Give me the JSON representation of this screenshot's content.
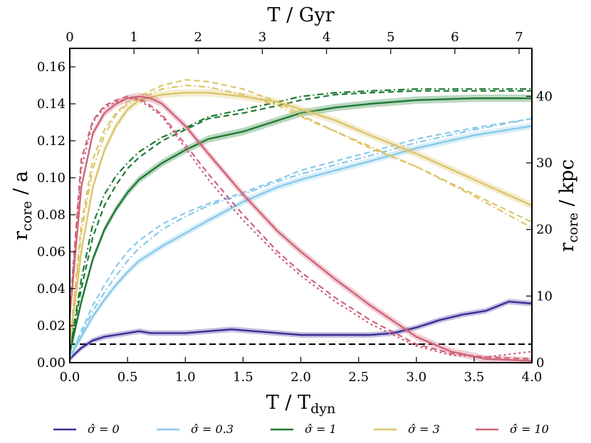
{
  "chart_data": {
    "type": "line",
    "x_bottom_label": "T / T",
    "x_bottom_label_sub": "dyn",
    "x_top_label": "T / Gyr",
    "y_left_label": "r",
    "y_left_label_sub": "core",
    "y_left_label_tail": " / a",
    "y_right_label": "r",
    "y_right_label_sub": "core",
    "y_right_label_tail": " / kpc",
    "xlim": [
      0,
      4
    ],
    "ylim": [
      0,
      0.17
    ],
    "x_top_lim": [
      0,
      7.2
    ],
    "y_right_lim": [
      0,
      47.2
    ],
    "x_ticks": [
      "0.0",
      "0.5",
      "1.0",
      "1.5",
      "2.0",
      "2.5",
      "3.0",
      "3.5",
      "4.0"
    ],
    "x_tick_values": [
      0,
      0.5,
      1.0,
      1.5,
      2.0,
      2.5,
      3.0,
      3.5,
      4.0
    ],
    "y_ticks": [
      "0.00",
      "0.02",
      "0.04",
      "0.06",
      "0.08",
      "0.10",
      "0.12",
      "0.14",
      "0.16"
    ],
    "y_tick_values": [
      0,
      0.02,
      0.04,
      0.06,
      0.08,
      0.1,
      0.12,
      0.14,
      0.16
    ],
    "x_top_ticks": [
      "0",
      "1",
      "2",
      "3",
      "4",
      "5",
      "6",
      "7"
    ],
    "x_top_tick_values": [
      0,
      1,
      2,
      3,
      4,
      5,
      6,
      7
    ],
    "y_right_ticks": [
      "0",
      "10",
      "20",
      "30",
      "40"
    ],
    "y_right_tick_values": [
      0,
      10,
      20,
      30,
      40
    ],
    "reference_line": {
      "y": 0.01,
      "style": "dashed",
      "color": "#000000"
    },
    "legend": {
      "position": "bottom",
      "entries": [
        {
          "label": "σ̂ = 0",
          "color": "#3b2c97"
        },
        {
          "label": "σ̂ = 0.3",
          "color": "#87c9ea"
        },
        {
          "label": "σ̂ = 1",
          "color": "#1e7a33"
        },
        {
          "label": "σ̂ = 3",
          "color": "#dcc56a"
        },
        {
          "label": "σ̂ = 10",
          "color": "#cf6479"
        }
      ]
    },
    "series": [
      {
        "name": "σ̂ = 0",
        "color": "#3b2c97",
        "x": [
          0,
          0.1,
          0.2,
          0.3,
          0.4,
          0.5,
          0.6,
          0.7,
          0.8,
          1.0,
          1.2,
          1.4,
          1.6,
          1.8,
          2.0,
          2.2,
          2.4,
          2.6,
          2.8,
          3.0,
          3.2,
          3.4,
          3.6,
          3.8,
          4.0
        ],
        "y": [
          0.002,
          0.008,
          0.012,
          0.014,
          0.015,
          0.016,
          0.017,
          0.016,
          0.016,
          0.016,
          0.017,
          0.018,
          0.017,
          0.016,
          0.015,
          0.015,
          0.015,
          0.015,
          0.016,
          0.019,
          0.023,
          0.026,
          0.028,
          0.033,
          0.032
        ],
        "band": 0.0015
      },
      {
        "name": "σ̂ = 0.3",
        "color": "#87c9ea",
        "x": [
          0,
          0.1,
          0.2,
          0.3,
          0.4,
          0.5,
          0.6,
          0.8,
          1.0,
          1.2,
          1.5,
          1.8,
          2.0,
          2.3,
          2.6,
          3.0,
          3.5,
          4.0
        ],
        "y": [
          0.003,
          0.014,
          0.025,
          0.034,
          0.042,
          0.049,
          0.055,
          0.063,
          0.07,
          0.077,
          0.087,
          0.095,
          0.099,
          0.104,
          0.109,
          0.116,
          0.123,
          0.128
        ],
        "band": 0.0018,
        "variants": [
          {
            "style": "dashed",
            "y": [
              0.003,
              0.017,
              0.031,
              0.042,
              0.052,
              0.06,
              0.066,
              0.075,
              0.081,
              0.086,
              0.092,
              0.099,
              0.104,
              0.109,
              0.114,
              0.121,
              0.127,
              0.132
            ]
          },
          {
            "style": "dashdot",
            "y": [
              0.003,
              0.016,
              0.028,
              0.038,
              0.047,
              0.055,
              0.062,
              0.072,
              0.079,
              0.085,
              0.091,
              0.098,
              0.102,
              0.107,
              0.112,
              0.119,
              0.126,
              0.132
            ]
          }
        ]
      },
      {
        "name": "σ̂ = 1",
        "color": "#1e7a33",
        "x": [
          0,
          0.1,
          0.2,
          0.3,
          0.4,
          0.5,
          0.6,
          0.8,
          1.0,
          1.2,
          1.5,
          1.8,
          2.0,
          2.3,
          2.6,
          3.0,
          3.5,
          4.0
        ],
        "y": [
          0.005,
          0.033,
          0.056,
          0.072,
          0.083,
          0.092,
          0.099,
          0.108,
          0.115,
          0.121,
          0.125,
          0.131,
          0.135,
          0.138,
          0.14,
          0.142,
          0.143,
          0.143
        ],
        "band": 0.002,
        "variants": [
          {
            "style": "dashed",
            "y": [
              0.006,
              0.04,
              0.068,
              0.085,
              0.096,
              0.105,
              0.111,
              0.12,
              0.126,
              0.132,
              0.135,
              0.139,
              0.142,
              0.145,
              0.146,
              0.147,
              0.147,
              0.147
            ]
          },
          {
            "style": "dashdot",
            "y": [
              0.006,
              0.045,
              0.075,
              0.091,
              0.101,
              0.108,
              0.114,
              0.122,
              0.127,
              0.133,
              0.137,
              0.141,
              0.144,
              0.146,
              0.147,
              0.148,
              0.148,
              0.148
            ]
          }
        ]
      },
      {
        "name": "σ̂ = 3",
        "color": "#dcc56a",
        "x": [
          0,
          0.1,
          0.2,
          0.3,
          0.4,
          0.5,
          0.6,
          0.8,
          1.0,
          1.2,
          1.5,
          1.8,
          2.0,
          2.3,
          2.6,
          3.0,
          3.5,
          4.0
        ],
        "y": [
          0.01,
          0.06,
          0.095,
          0.115,
          0.128,
          0.137,
          0.142,
          0.145,
          0.146,
          0.146,
          0.144,
          0.141,
          0.137,
          0.131,
          0.123,
          0.113,
          0.099,
          0.085
        ],
        "band": 0.002,
        "variants": [
          {
            "style": "dashed",
            "y": [
              0.011,
              0.075,
              0.11,
              0.126,
              0.135,
              0.141,
              0.144,
              0.15,
              0.153,
              0.152,
              0.148,
              0.141,
              0.134,
              0.125,
              0.116,
              0.106,
              0.091,
              0.076
            ]
          },
          {
            "style": "dashdot",
            "y": [
              0.011,
              0.07,
              0.105,
              0.123,
              0.134,
              0.14,
              0.143,
              0.148,
              0.15,
              0.149,
              0.145,
              0.139,
              0.133,
              0.125,
              0.117,
              0.106,
              0.09,
              0.073
            ]
          }
        ]
      },
      {
        "name": "σ̂ = 10",
        "color": "#cf6479",
        "x": [
          0,
          0.1,
          0.2,
          0.3,
          0.4,
          0.5,
          0.6,
          0.7,
          0.8,
          1.0,
          1.2,
          1.5,
          1.8,
          2.0,
          2.3,
          2.6,
          3.0,
          3.3,
          3.6,
          4.0
        ],
        "y": [
          0.025,
          0.095,
          0.124,
          0.135,
          0.14,
          0.143,
          0.144,
          0.143,
          0.14,
          0.128,
          0.113,
          0.091,
          0.071,
          0.06,
          0.045,
          0.031,
          0.014,
          0.006,
          0.002,
          0.001
        ],
        "band": 0.002,
        "variants": [
          {
            "style": "dashed",
            "y": [
              0.028,
              0.11,
              0.131,
              0.139,
              0.142,
              0.144,
              0.143,
              0.139,
              0.134,
              0.118,
              0.102,
              0.08,
              0.06,
              0.049,
              0.035,
              0.023,
              0.01,
              0.005,
              0.003,
              0.002
            ]
          },
          {
            "style": "dotted",
            "y": [
              0.027,
              0.105,
              0.13,
              0.138,
              0.141,
              0.143,
              0.142,
              0.138,
              0.133,
              0.116,
              0.099,
              0.077,
              0.058,
              0.047,
              0.033,
              0.021,
              0.009,
              0.004,
              0.003,
              0.006
            ]
          }
        ]
      }
    ]
  }
}
